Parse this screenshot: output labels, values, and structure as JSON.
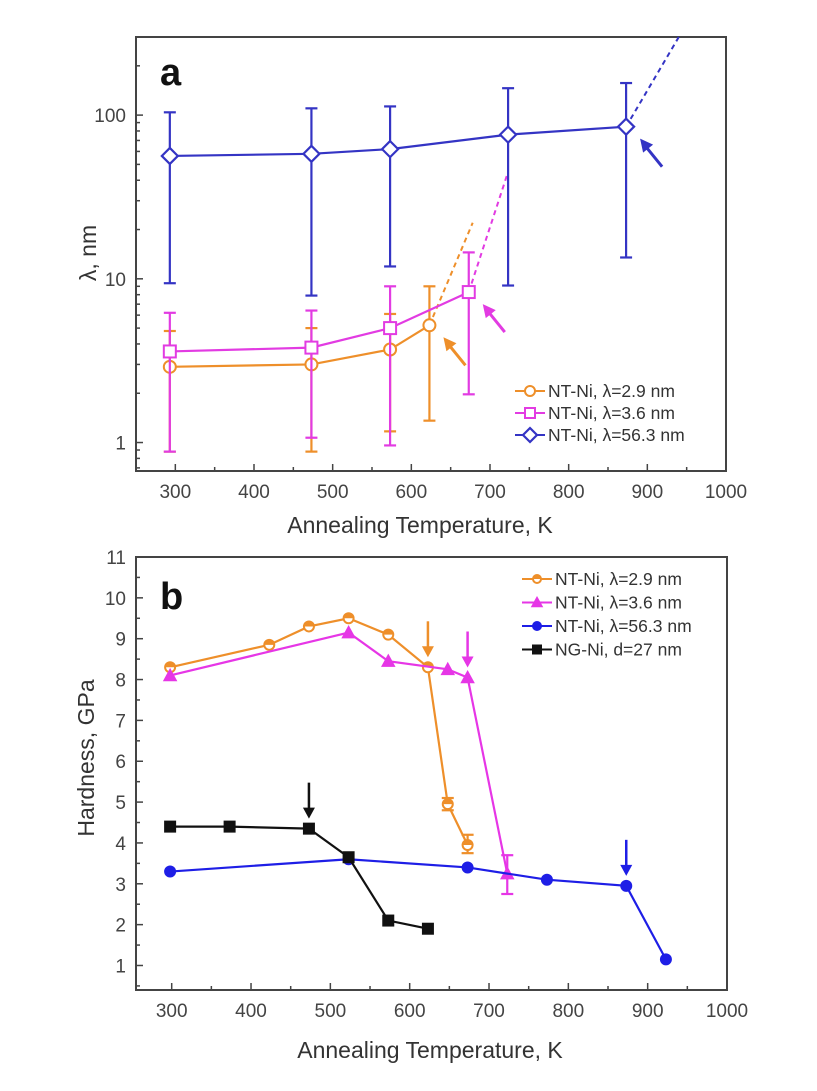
{
  "figure": {
    "panels": [
      "a",
      "b"
    ]
  },
  "chart_data": [
    {
      "panel": "a",
      "type": "line",
      "panel_label": "a",
      "title": "",
      "xlabel": "Annealing Temperature, K",
      "ylabel": "λ, nm",
      "yscale": "log",
      "xlim": [
        250,
        1000
      ],
      "ylim": [
        0.67,
        300
      ],
      "xticks": [
        300,
        400,
        500,
        600,
        700,
        800,
        900,
        1000
      ],
      "xtick_labels": [
        "300",
        "400",
        "500",
        "600",
        "700",
        "800",
        "900",
        "1000"
      ],
      "yticks": [
        1,
        10,
        100
      ],
      "ytick_labels": [
        "1",
        "10",
        "100"
      ],
      "grid": false,
      "legend_position": "bottom-right",
      "series": [
        {
          "name": "NT-Ni, λ=2.9 nm",
          "color": "#EE8F2A",
          "marker": "circle-open",
          "x": [
            293,
            473,
            573,
            623
          ],
          "y": [
            2.9,
            3.0,
            3.7,
            5.2
          ],
          "err_low": [
            0.88,
            0.88,
            1.17,
            1.36
          ],
          "err_high": [
            4.8,
            5.0,
            6.1,
            9.0
          ],
          "extrapolation": {
            "x": [
              623,
              678
            ],
            "y": [
              5.2,
              22
            ]
          },
          "arrow_at": {
            "x": 623,
            "y": 5.2
          }
        },
        {
          "name": "NT-Ni, λ=3.6 nm",
          "color": "#E23BE2",
          "marker": "square-open",
          "x": [
            293,
            473,
            573,
            673
          ],
          "y": [
            3.6,
            3.8,
            5.0,
            8.3
          ],
          "err_low": [
            0.88,
            1.07,
            0.96,
            1.97
          ],
          "err_high": [
            6.2,
            6.4,
            9.0,
            14.5
          ],
          "extrapolation": {
            "x": [
              673,
              723
            ],
            "y": [
              8.3,
              45
            ]
          },
          "arrow_at": {
            "x": 673,
            "y": 8.3
          }
        },
        {
          "name": "NT-Ni, λ=56.3 nm",
          "color": "#3434C4",
          "marker": "diamond-open",
          "x": [
            293,
            473,
            573,
            723,
            873
          ],
          "y": [
            56.3,
            58,
            62,
            76,
            85
          ],
          "err_low": [
            9.4,
            7.9,
            11.9,
            9.1,
            13.5
          ],
          "err_high": [
            104,
            110,
            113,
            146,
            157
          ],
          "extrapolation": {
            "x": [
              873,
              940
            ],
            "y": [
              85,
              300
            ]
          },
          "arrow_at": {
            "x": 873,
            "y": 85
          }
        }
      ]
    },
    {
      "panel": "b",
      "type": "line",
      "panel_label": "b",
      "title": "",
      "xlabel": "Annealing Temperature, K",
      "ylabel": "Hardness, GPa",
      "yscale": "linear",
      "xlim": [
        255,
        1000
      ],
      "ylim": [
        0.4,
        11
      ],
      "xticks": [
        300,
        400,
        500,
        600,
        700,
        800,
        900,
        1000
      ],
      "xtick_labels": [
        "300",
        "400",
        "500",
        "600",
        "700",
        "800",
        "900",
        "1000"
      ],
      "yticks": [
        1,
        2,
        3,
        4,
        5,
        6,
        7,
        8,
        9,
        10,
        11
      ],
      "ytick_labels": [
        "1",
        "2",
        "3",
        "4",
        "5",
        "6",
        "7",
        "8",
        "9",
        "10",
        "11"
      ],
      "grid": false,
      "legend_position": "top-right",
      "series": [
        {
          "name": "NT-Ni, λ=2.9 nm",
          "color": "#EE8F2A",
          "marker": "circle-halffilled",
          "x": [
            298,
            423,
            473,
            523,
            573,
            623,
            648,
            673
          ],
          "y": [
            8.3,
            8.85,
            9.3,
            9.5,
            9.1,
            8.3,
            4.95,
            3.95
          ],
          "err_low": [
            null,
            null,
            null,
            null,
            null,
            null,
            4.8,
            3.75
          ],
          "err_high": [
            null,
            null,
            null,
            null,
            null,
            null,
            5.1,
            4.2
          ],
          "arrow_at": {
            "x": 623,
            "y": 8.3
          }
        },
        {
          "name": "NT-Ni, λ=3.6 nm",
          "color": "#E636E6",
          "marker": "triangle-filled",
          "x": [
            298,
            523,
            573,
            648,
            673,
            723
          ],
          "y": [
            8.1,
            9.15,
            8.45,
            8.25,
            8.05,
            3.25
          ],
          "err_low": [
            null,
            null,
            null,
            null,
            null,
            2.75
          ],
          "err_high": [
            null,
            null,
            null,
            null,
            null,
            3.7
          ],
          "arrow_at": {
            "x": 673,
            "y": 8.05
          }
        },
        {
          "name": "NT-Ni, λ=56.3 nm",
          "color": "#1E1EE6",
          "marker": "circle-filled",
          "x": [
            298,
            523,
            673,
            773,
            873,
            923
          ],
          "y": [
            3.3,
            3.6,
            3.4,
            3.1,
            2.95,
            1.15
          ],
          "arrow_at": {
            "x": 873,
            "y": 2.95
          }
        },
        {
          "name": "NG-Ni, d=27 nm",
          "color": "#111111",
          "marker": "square-filled",
          "x": [
            298,
            373,
            473,
            523,
            573,
            623
          ],
          "y": [
            4.4,
            4.4,
            4.35,
            3.65,
            2.1,
            1.9
          ],
          "arrow_at": {
            "x": 473,
            "y": 4.35
          }
        }
      ]
    }
  ]
}
